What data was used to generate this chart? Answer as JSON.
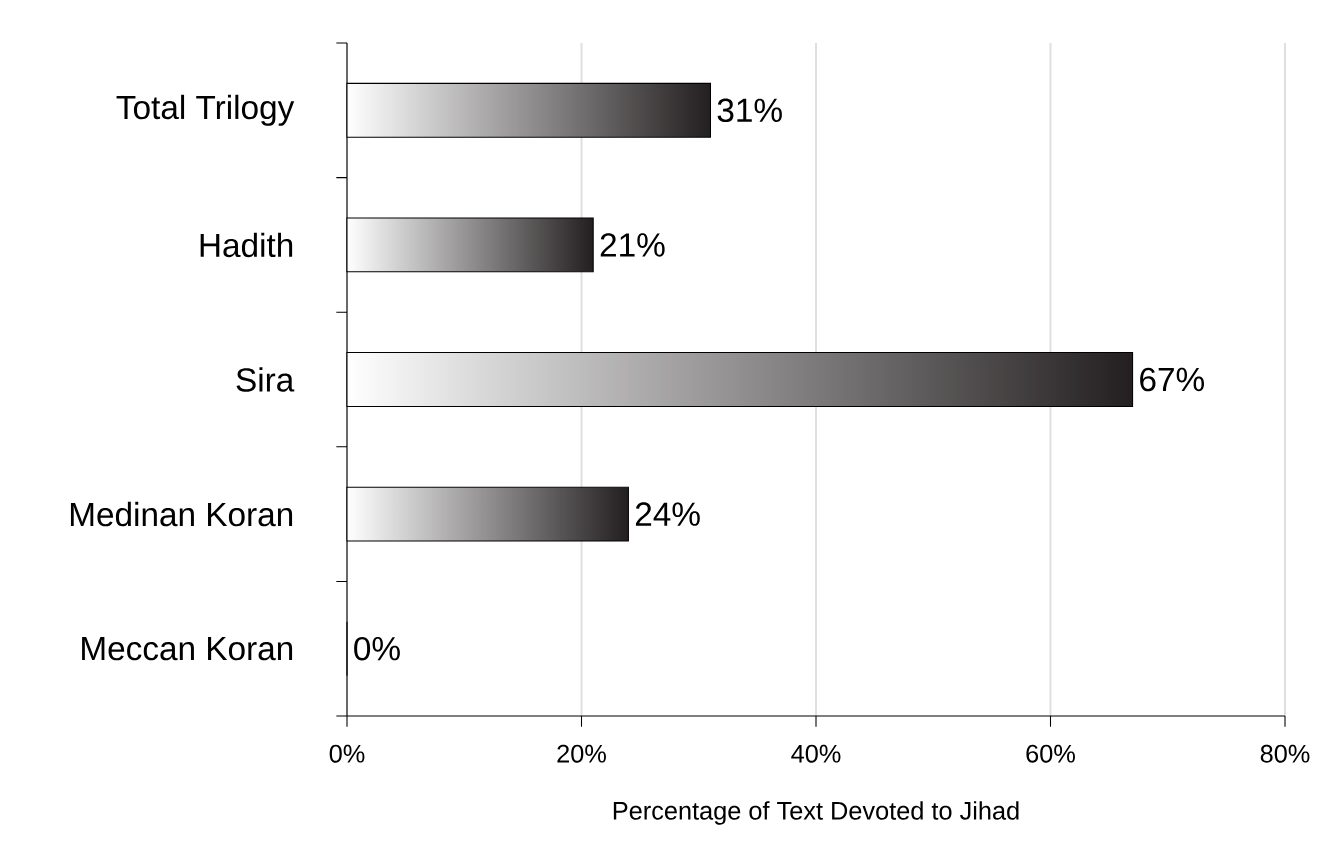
{
  "chart_data": {
    "type": "bar",
    "orientation": "horizontal",
    "categories": [
      "Total Trilogy",
      "Hadith",
      "Sira",
      "Medinan Koran",
      "Meccan Koran"
    ],
    "values": [
      31,
      21,
      67,
      24,
      0
    ],
    "value_labels": [
      "31%",
      "21%",
      "67%",
      "24%",
      "0%"
    ],
    "color": "#231f20",
    "xlim": [
      0,
      80
    ],
    "xticks": [
      {
        "value": 0,
        "label": "0%"
      },
      {
        "value": 20,
        "label": "20%"
      },
      {
        "value": 40,
        "label": "40%"
      },
      {
        "value": 60,
        "label": "60%"
      },
      {
        "value": 80,
        "label": "80%"
      }
    ],
    "xlabel": "Percentage of Text Devoted to Jihad",
    "grid": "x"
  }
}
